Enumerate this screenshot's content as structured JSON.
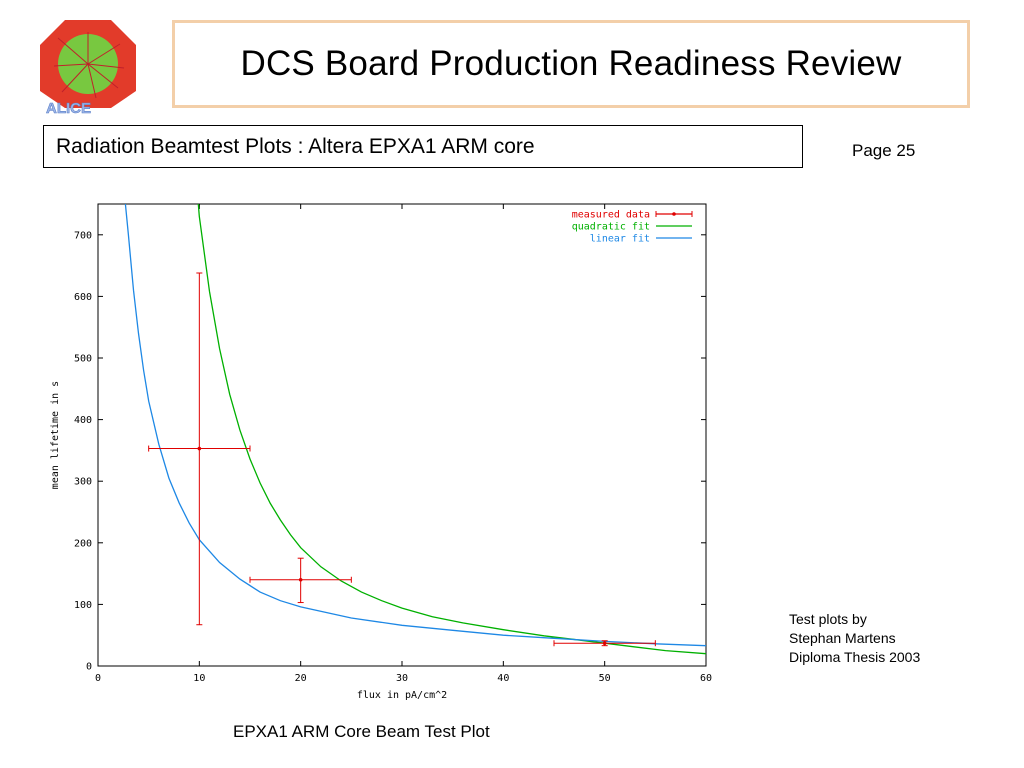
{
  "slide": {
    "title": "DCS Board Production Readiness Review",
    "subtitle": "Radiation Beamtest Plots : Altera EPXA1 ARM core",
    "page": "Page 25",
    "logo_text": "ALICE",
    "note_lines": [
      "Test plots by",
      "Stephan Martens",
      "Diploma Thesis 2003"
    ],
    "caption": "EPXA1 ARM Core Beam Test Plot"
  },
  "colors": {
    "title_border": "#f3cfa9",
    "measured": "#e00000",
    "quadratic": "#00b000",
    "linear": "#1e88e5"
  },
  "chart_data": {
    "type": "scatter",
    "xlabel": "flux in pA/cm^2",
    "ylabel": "mean lifetime in s",
    "xlim": [
      0,
      60
    ],
    "ylim": [
      0,
      750
    ],
    "xticks": [
      0,
      10,
      20,
      30,
      40,
      50,
      60
    ],
    "yticks": [
      0,
      100,
      200,
      300,
      400,
      500,
      600,
      700
    ],
    "legend_position": "top-right",
    "series": [
      {
        "name": "measured data",
        "kind": "points-with-errorbars",
        "points": [
          {
            "x": 10,
            "y": 353,
            "xerr": 5,
            "ylow": 67,
            "yhigh": 638
          },
          {
            "x": 20,
            "y": 140,
            "xerr": 5,
            "ylow": 103,
            "yhigh": 175
          },
          {
            "x": 50,
            "y": 37,
            "xerr": 5,
            "ylow": 33,
            "yhigh": 41
          }
        ]
      },
      {
        "name": "quadratic fit",
        "kind": "curve",
        "x": [
          9.9,
          10,
          11,
          12,
          13,
          14,
          15,
          16,
          17,
          18,
          19,
          20,
          22,
          24,
          26,
          28,
          30,
          33,
          36,
          40,
          44,
          48,
          52,
          56,
          60
        ],
        "y": [
          750,
          730,
          608,
          515,
          441,
          383,
          336,
          297,
          264,
          237,
          213,
          192,
          161,
          138,
          120,
          106,
          94,
          80,
          70,
          59,
          49,
          41,
          33,
          25,
          20
        ]
      },
      {
        "name": "linear fit",
        "kind": "curve",
        "x": [
          2.7,
          3,
          3.5,
          4,
          4.5,
          5,
          6,
          7,
          8,
          9,
          10,
          12,
          14,
          16,
          18,
          20,
          25,
          30,
          35,
          40,
          45,
          50,
          55,
          60
        ],
        "y": [
          750,
          700,
          610,
          540,
          480,
          430,
          360,
          305,
          265,
          232,
          205,
          168,
          141,
          120,
          106,
          96,
          78,
          66,
          58,
          50,
          45,
          40,
          36,
          33
        ]
      }
    ]
  }
}
